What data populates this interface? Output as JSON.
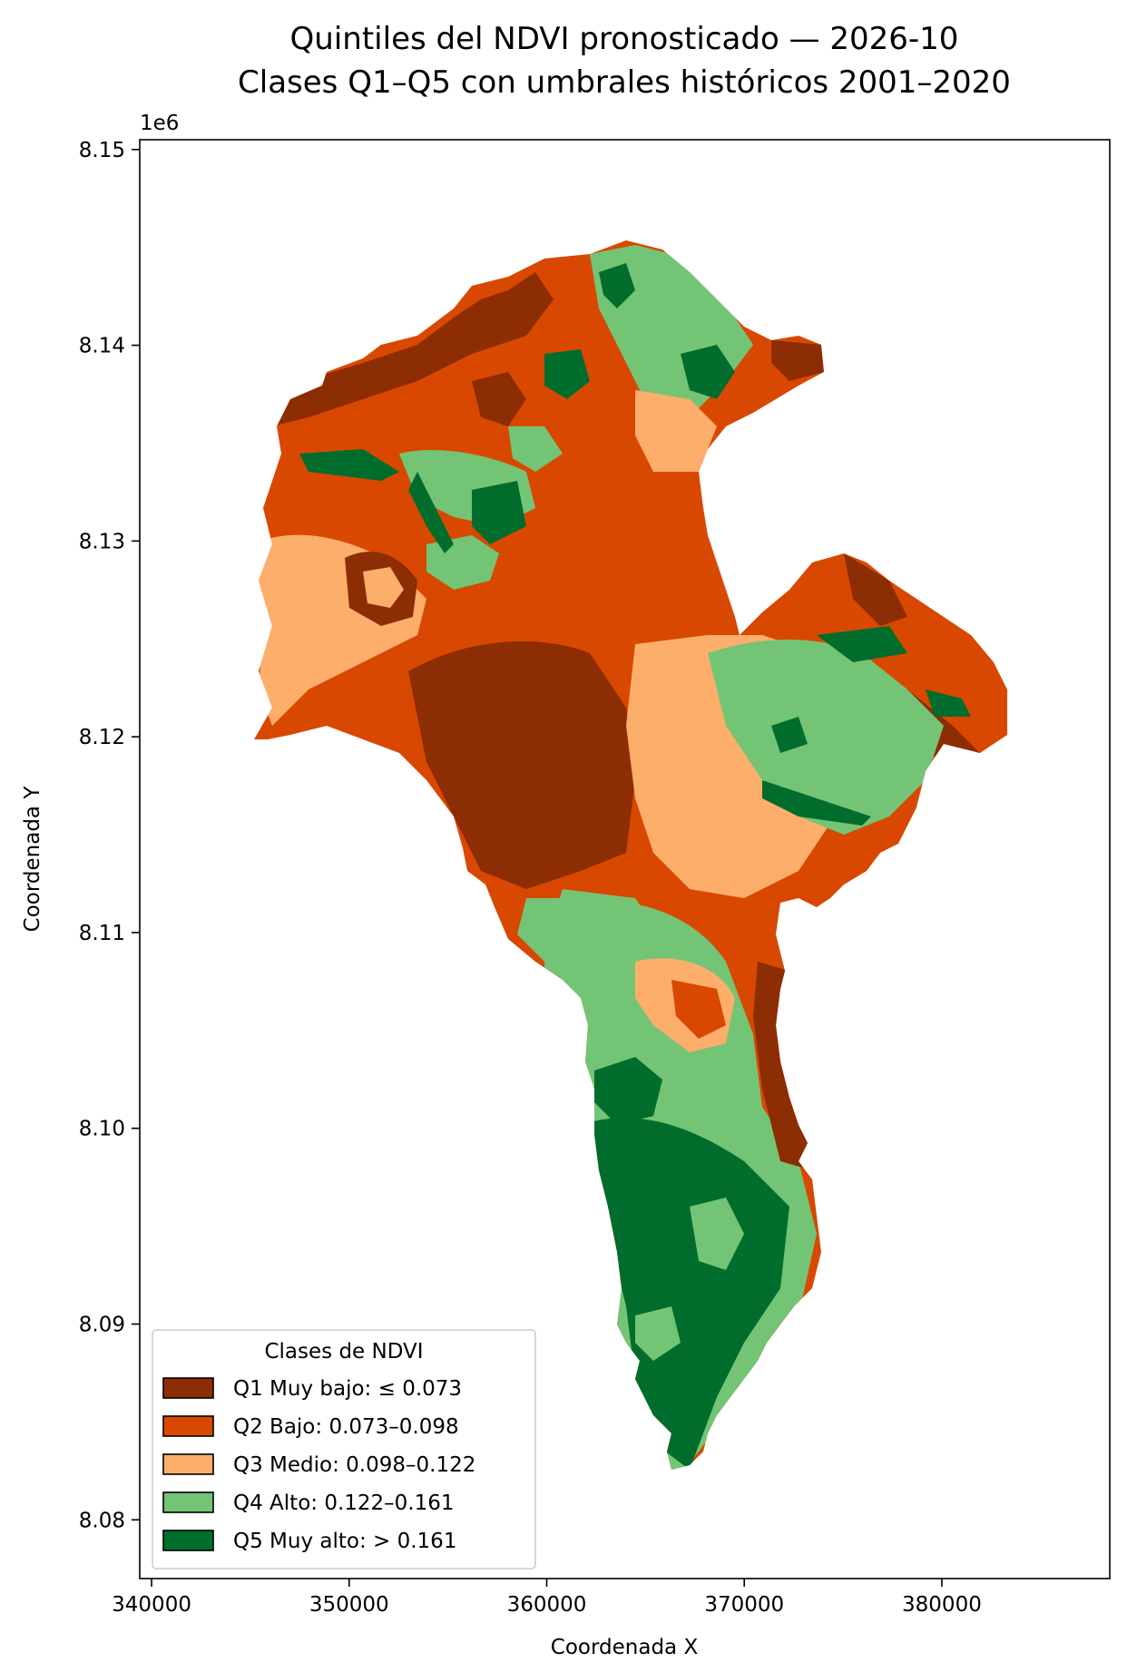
{
  "figure": {
    "title_line1": "Quintiles del NDVI pronosticado — 2026-10",
    "title_line2": "Clases Q1–Q5 con umbrales históricos 2001–2020"
  },
  "map": {
    "xlabel": "Coordenada X",
    "ylabel": "Coordenada Y",
    "y_offset_label": "1e6",
    "x_ticks": [
      340000,
      350000,
      360000,
      370000,
      380000
    ],
    "x_tick_labels": [
      "340000",
      "350000",
      "360000",
      "370000",
      "380000"
    ],
    "y_ticks": [
      8.08,
      8.09,
      8.1,
      8.11,
      8.12,
      8.13,
      8.14,
      8.15
    ],
    "y_tick_labels": [
      "8.08",
      "8.09",
      "8.10",
      "8.11",
      "8.12",
      "8.13",
      "8.14",
      "8.15"
    ],
    "xlim": [
      339400,
      388500
    ],
    "ylim": [
      8.077,
      8.1505
    ]
  },
  "legend": {
    "title": "Clases de NDVI",
    "placement": "lower-left",
    "classes": [
      {
        "label": "Q1 Muy bajo: ≤ 0.073",
        "color": "#8c2d04"
      },
      {
        "label": "Q2 Bajo: 0.073–0.098",
        "color": "#d94801"
      },
      {
        "label": "Q3 Medio: 0.098–0.122",
        "color": "#fdae6b"
      },
      {
        "label": "Q4 Alto: 0.122–0.161",
        "color": "#74c476"
      },
      {
        "label": "Q5 Muy alto: > 0.161",
        "color": "#006d2c"
      }
    ]
  }
}
